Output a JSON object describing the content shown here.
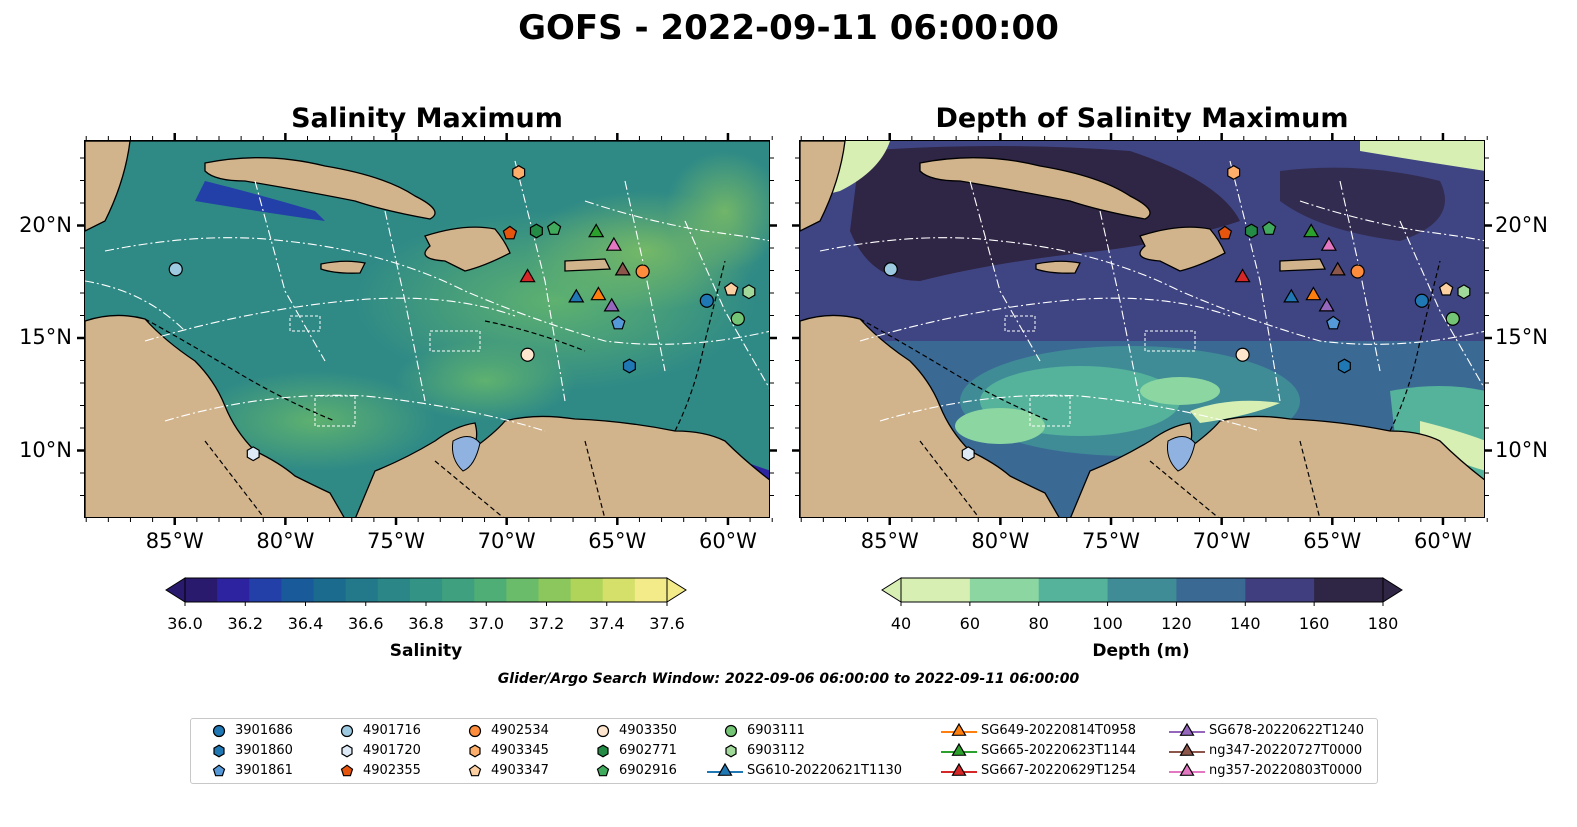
{
  "title": "GOFS - 2022-09-11 06:00:00",
  "panels": [
    {
      "title": "Salinity Maximum"
    },
    {
      "title": "Depth of Salinity Maximum"
    }
  ],
  "axes": {
    "x_ticks": [
      "85°W",
      "80°W",
      "75°W",
      "70°W",
      "65°W",
      "60°W"
    ],
    "y_ticks": [
      "20°N",
      "15°N",
      "10°N"
    ]
  },
  "colorbars": [
    {
      "label": "Salinity",
      "ticks": [
        "36.0",
        "36.2",
        "36.4",
        "36.6",
        "36.8",
        "37.0",
        "37.2",
        "37.4",
        "37.6"
      ],
      "colors": [
        "#2a1a6e",
        "#2d23a0",
        "#233fa8",
        "#185a9a",
        "#1a6b8e",
        "#23798a",
        "#2a8687",
        "#339384",
        "#3ea07e",
        "#4fae76",
        "#6abb6a",
        "#8cc75d",
        "#b0d459",
        "#d5e06b",
        "#f3ea8a"
      ]
    },
    {
      "label": "Depth (m)",
      "ticks": [
        "40",
        "60",
        "80",
        "100",
        "120",
        "140",
        "160",
        "180"
      ],
      "colors": [
        "#d8efb3",
        "#8bd6a1",
        "#55b29b",
        "#3f8c97",
        "#3a6a94",
        "#413e80",
        "#2f2545"
      ]
    }
  ],
  "search_window": "Glider/Argo Search Window: 2022-09-06 06:00:00 to 2022-09-11 06:00:00",
  "legend": [
    {
      "label": "3901686",
      "marker": "circle",
      "color": "#1f77b4"
    },
    {
      "label": "3901860",
      "marker": "hexagon",
      "color": "#1f77b4"
    },
    {
      "label": "3901861",
      "marker": "pentagon",
      "color": "#5599d8"
    },
    {
      "label": "4901716",
      "marker": "circle",
      "color": "#9ecae1"
    },
    {
      "label": "4901720",
      "marker": "hexagon",
      "color": "#deebf7"
    },
    {
      "label": "4902355",
      "marker": "pentagon",
      "color": "#e6550d"
    },
    {
      "label": "4902534",
      "marker": "circle",
      "color": "#fd8d3c"
    },
    {
      "label": "4903345",
      "marker": "hexagon",
      "color": "#fdae6b"
    },
    {
      "label": "4903347",
      "marker": "pentagon",
      "color": "#fdd0a2"
    },
    {
      "label": "4903350",
      "marker": "circle",
      "color": "#fee6ce"
    },
    {
      "label": "6902771",
      "marker": "hexagon",
      "color": "#238b45"
    },
    {
      "label": "6902916",
      "marker": "pentagon",
      "color": "#41ab5d"
    },
    {
      "label": "6903111",
      "marker": "circle",
      "color": "#74c476"
    },
    {
      "label": "6903112",
      "marker": "hexagon",
      "color": "#a1d99b"
    },
    {
      "label": "SG610-20220621T1130",
      "marker": "triangle",
      "color": "#1f77b4"
    },
    {
      "label": "SG649-20220814T0958",
      "marker": "triangle",
      "color": "#ff7f0e"
    },
    {
      "label": "SG665-20220623T1144",
      "marker": "triangle",
      "color": "#2ca02c"
    },
    {
      "label": "SG667-20220629T1254",
      "marker": "triangle",
      "color": "#d62728"
    },
    {
      "label": "SG678-20220622T1240",
      "marker": "triangle",
      "color": "#9467bd"
    },
    {
      "label": "ng347-20220727T0000",
      "marker": "triangle",
      "color": "#8c564b"
    },
    {
      "label": "ng357-20220803T0000",
      "marker": "triangle",
      "color": "#e377c2"
    }
  ],
  "observations": [
    {
      "id": "3901686",
      "lon": -61.0,
      "lat": 16.7
    },
    {
      "id": "3901860",
      "lon": -64.5,
      "lat": 13.8
    },
    {
      "id": "3901861",
      "lon": -65.0,
      "lat": 15.7
    },
    {
      "id": "4901716",
      "lon": -85.0,
      "lat": 18.1
    },
    {
      "id": "4901720",
      "lon": -81.5,
      "lat": 9.9
    },
    {
      "id": "4902355",
      "lon": -69.9,
      "lat": 19.7
    },
    {
      "id": "4902534",
      "lon": -63.9,
      "lat": 18.0
    },
    {
      "id": "4903345",
      "lon": -69.5,
      "lat": 22.4
    },
    {
      "id": "4903347",
      "lon": -59.9,
      "lat": 17.2
    },
    {
      "id": "4903350",
      "lon": -69.1,
      "lat": 14.3
    },
    {
      "id": "6902771",
      "lon": -68.7,
      "lat": 19.8
    },
    {
      "id": "6902916",
      "lon": -67.9,
      "lat": 19.9
    },
    {
      "id": "6903111",
      "lon": -59.6,
      "lat": 15.9
    },
    {
      "id": "6903112",
      "lon": -59.1,
      "lat": 17.1
    },
    {
      "id": "SG610-20220621T1130",
      "lon": -66.9,
      "lat": 16.9
    },
    {
      "id": "SG649-20220814T0958",
      "lon": -65.9,
      "lat": 17.0
    },
    {
      "id": "SG665-20220623T1144",
      "lon": -66.0,
      "lat": 19.8
    },
    {
      "id": "SG667-20220629T1254",
      "lon": -69.1,
      "lat": 17.8
    },
    {
      "id": "SG678-20220622T1240",
      "lon": -65.3,
      "lat": 16.5
    },
    {
      "id": "ng347-20220727T0000",
      "lon": -64.8,
      "lat": 18.1
    },
    {
      "id": "ng357-20220803T0000",
      "lon": -65.2,
      "lat": 19.2
    }
  ]
}
